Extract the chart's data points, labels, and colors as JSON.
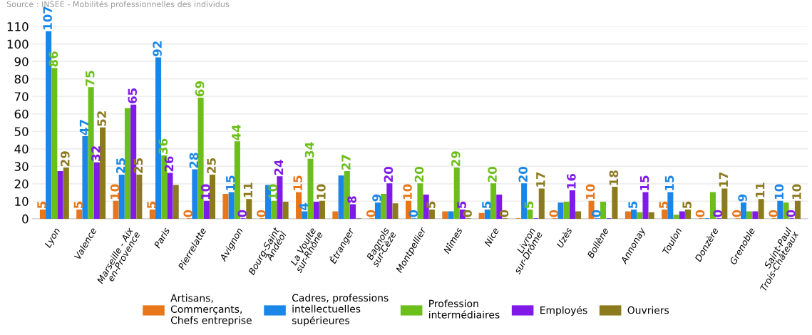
{
  "chart_data": {
    "type": "bar",
    "annotations": [
      "Source : INSEE - Mobilités professionnelles des individus"
    ],
    "categories": [
      "Lyon",
      "Valence",
      "Marseille - Aix\nen-Provence",
      "Paris",
      "Pierrelatte",
      "Avignon",
      "Bourg-Saint\nAndéol",
      "La Voulte\nsur-Rhône",
      "Étranger",
      "Bagnols\nsur-Cèze",
      "Montpellier",
      "Nîmes",
      "Nice",
      "Livron\nsur-Drôme",
      "Uzès",
      "Bollène",
      "Annonay",
      "Toulon",
      "Donzère",
      "Grenoble",
      "Saint-Paul\nTrois-Châteaux"
    ],
    "series": [
      {
        "name": "Artisans,\nCommerçants,\nChefs entreprise",
        "color": "#e8761a",
        "values": [
          5,
          5,
          10,
          5,
          0,
          14,
          0,
          15,
          4,
          0,
          10,
          4,
          3,
          0,
          0,
          10,
          4,
          5,
          0,
          0,
          0
        ],
        "value_labels": [
          "5",
          "5",
          "10",
          "5",
          "0",
          null,
          "0",
          "15",
          null,
          "0",
          "10",
          null,
          null,
          null,
          "0",
          "10",
          null,
          "5",
          "0",
          "0",
          "0"
        ]
      },
      {
        "name": "Cadres, professions\nintellectuelles\nsupérieures",
        "color": "#1a86e8",
        "values": [
          107,
          47,
          25,
          92,
          28,
          15,
          19,
          4,
          24.5,
          9,
          0,
          4,
          5,
          20,
          9,
          0,
          5,
          15,
          0,
          9,
          10
        ],
        "value_labels": [
          "107",
          "47",
          "25",
          "92",
          "28",
          "15",
          null,
          "4",
          null,
          "9",
          "0",
          null,
          "5",
          "20",
          null,
          "0",
          "5",
          "15",
          null,
          "9",
          "10"
        ]
      },
      {
        "name": "Profession\nintermédiaires",
        "color": "#6cbf1a",
        "values": [
          86,
          75,
          63,
          36,
          69,
          44,
          10,
          34,
          27,
          14,
          20,
          29,
          20,
          5,
          9.5,
          9.5,
          3.5,
          2,
          15,
          4,
          9
        ],
        "value_labels": [
          "86",
          "75",
          null,
          "36",
          "69",
          "44",
          "10",
          "34",
          "27",
          null,
          "20",
          "29",
          "20",
          "5",
          null,
          null,
          null,
          null,
          null,
          null,
          null
        ]
      },
      {
        "name": "Employés",
        "color": "#7f1ae8",
        "values": [
          27,
          32,
          65,
          26,
          10,
          0,
          24,
          9.5,
          8,
          20,
          13.5,
          5,
          13.5,
          0,
          16,
          0,
          15,
          4,
          0,
          4,
          0
        ],
        "value_labels": [
          null,
          "32",
          "65",
          "26",
          "10",
          "0",
          "24",
          null,
          "8",
          "20",
          null,
          "5",
          null,
          null,
          "16",
          null,
          "15",
          null,
          "0",
          null,
          "0"
        ]
      },
      {
        "name": "Ouvriers",
        "color": "#8c7a1e",
        "values": [
          29,
          52,
          25,
          19,
          25,
          11,
          9.5,
          10,
          0,
          8.5,
          5,
          0,
          0,
          17,
          4,
          18,
          3.5,
          5,
          17,
          11,
          10
        ],
        "value_labels": [
          "29",
          "52",
          "25",
          null,
          "25",
          "11",
          null,
          "10",
          null,
          null,
          "5",
          "0",
          "0",
          "17",
          null,
          "18",
          null,
          "5",
          "17",
          "11",
          "10"
        ]
      }
    ],
    "ylim": [
      0,
      110
    ],
    "yticks": [
      0,
      10,
      20,
      30,
      40,
      50,
      60,
      70,
      80,
      90,
      100,
      110
    ],
    "grid": "y",
    "legend": "bottom"
  }
}
